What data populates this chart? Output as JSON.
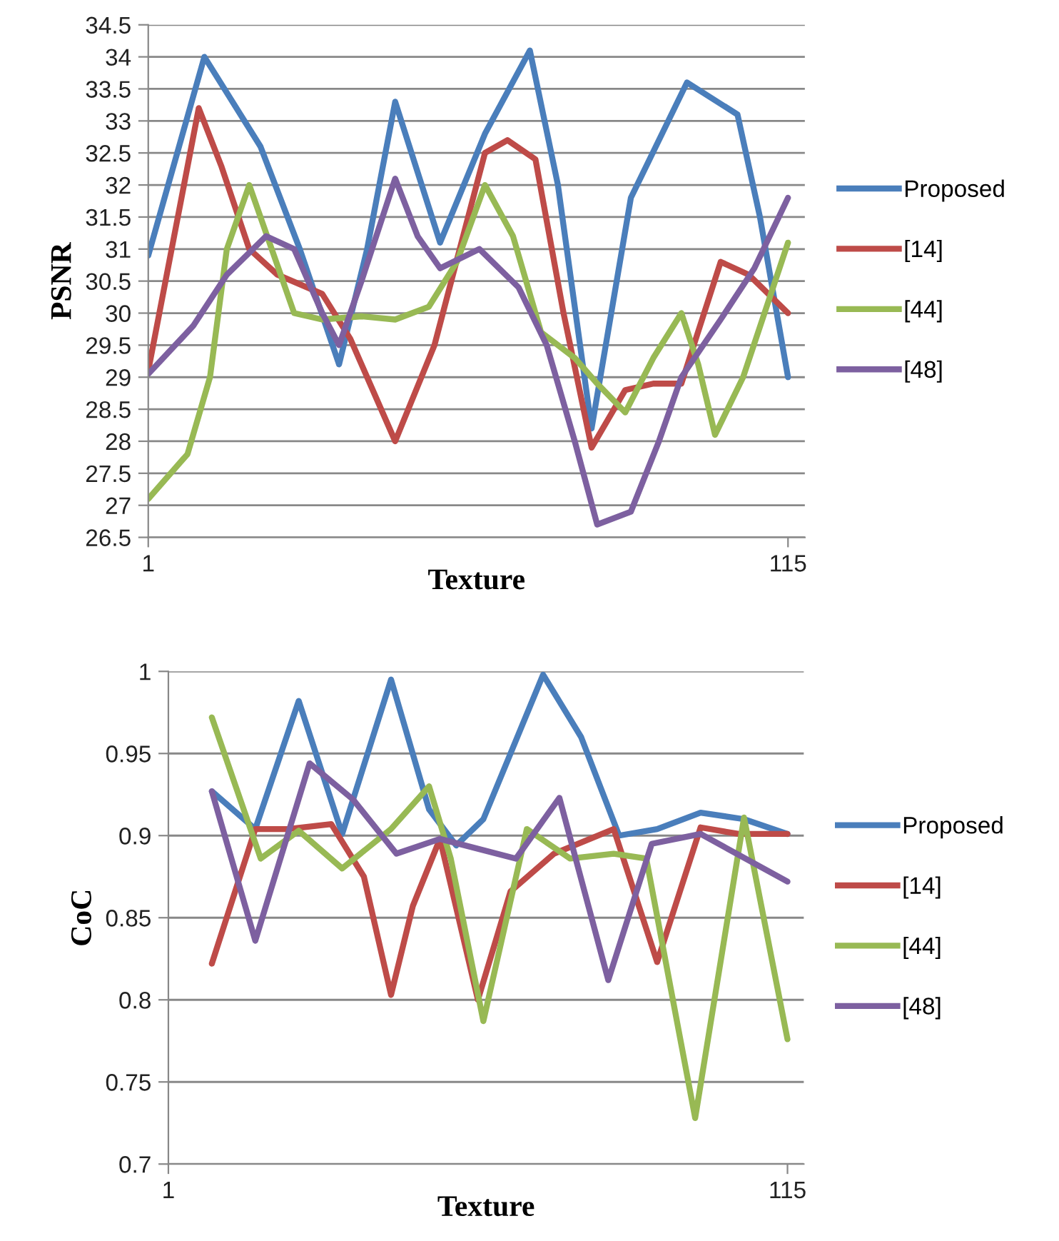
{
  "chart_data": [
    {
      "type": "line",
      "xlabel": "Texture",
      "ylabel": "PSNR",
      "xlim": [
        1,
        118
      ],
      "xticks": [
        1,
        115
      ],
      "ylim": [
        26.5,
        34.5
      ],
      "yticks": [
        26.5,
        27,
        27.5,
        28,
        28.5,
        29,
        29.5,
        30,
        30.5,
        31,
        31.5,
        32,
        32.5,
        33,
        33.5,
        34,
        34.5
      ],
      "grid": "y",
      "legend": "right",
      "marker": "none",
      "line_style": "solid",
      "series": [
        {
          "name": "Proposed",
          "color": "#4a7ebb",
          "x": [
            1,
            11,
            21,
            28,
            35,
            40,
            45,
            53,
            61,
            69,
            74,
            80,
            87,
            97,
            106,
            110,
            115
          ],
          "values": [
            30.9,
            34.0,
            32.6,
            31.0,
            29.2,
            31.0,
            33.3,
            31.1,
            32.8,
            34.1,
            32.0,
            28.2,
            31.8,
            33.6,
            33.1,
            31.5,
            29.0
          ]
        },
        {
          "name": "[14]",
          "color": "#be4b48",
          "x": [
            1,
            10,
            14,
            19,
            24,
            32,
            37,
            45,
            52,
            61,
            65,
            70,
            75,
            80,
            86,
            91,
            96,
            103,
            108,
            115
          ],
          "values": [
            29.1,
            33.2,
            32.3,
            31.0,
            30.6,
            30.3,
            29.6,
            28.0,
            29.5,
            32.5,
            32.7,
            32.4,
            30.0,
            27.9,
            28.8,
            28.9,
            28.9,
            30.8,
            30.6,
            30.0
          ]
        },
        {
          "name": "[44]",
          "color": "#98b954",
          "x": [
            1,
            8,
            12,
            15,
            19,
            23,
            27,
            32,
            39,
            45,
            51,
            56,
            61,
            66,
            71,
            77,
            81,
            86,
            91,
            96,
            99,
            102,
            107,
            115
          ],
          "values": [
            27.1,
            27.8,
            29.0,
            31.0,
            32.0,
            31.0,
            30.0,
            29.9,
            29.95,
            29.9,
            30.1,
            30.8,
            32.0,
            31.2,
            29.7,
            29.3,
            28.9,
            28.45,
            29.3,
            30.0,
            29.2,
            28.1,
            29.0,
            31.1
          ]
        },
        {
          "name": "[48]",
          "color": "#7d60a0",
          "x": [
            1,
            9,
            15,
            22,
            27,
            32,
            35,
            39,
            45,
            49,
            53,
            60,
            67,
            72,
            77,
            81,
            87,
            92,
            96,
            103,
            109,
            115
          ],
          "values": [
            29.05,
            29.8,
            30.6,
            31.2,
            31.0,
            30.0,
            29.5,
            30.5,
            32.1,
            31.2,
            30.7,
            31.0,
            30.4,
            29.5,
            28.0,
            26.7,
            26.9,
            28.0,
            29.0,
            29.9,
            30.7,
            31.8
          ]
        }
      ]
    },
    {
      "type": "line",
      "xlabel": "Texture",
      "ylabel": "CoC",
      "xlim": [
        1,
        118
      ],
      "xticks": [
        1,
        115
      ],
      "ylim": [
        0.7,
        1.0
      ],
      "yticks": [
        0.7,
        0.75,
        0.8,
        0.85,
        0.9,
        0.95,
        1
      ],
      "grid": "y",
      "legend": "right",
      "marker": "none",
      "line_style": "solid",
      "series": [
        {
          "name": "Proposed",
          "color": "#4a7ebb",
          "x": [
            9,
            17,
            25,
            33,
            42,
            49,
            54,
            59,
            70,
            77,
            84,
            91,
            99,
            107,
            115
          ],
          "values": [
            0.927,
            0.904,
            0.982,
            0.901,
            0.995,
            0.916,
            0.894,
            0.91,
            0.998,
            0.96,
            0.9,
            0.904,
            0.914,
            0.91,
            0.901
          ]
        },
        {
          "name": "[14]",
          "color": "#be4b48",
          "x": [
            9,
            17,
            23,
            31,
            37,
            42,
            46,
            51,
            58,
            64,
            72,
            83,
            91,
            99,
            106,
            115
          ],
          "values": [
            0.822,
            0.904,
            0.904,
            0.907,
            0.875,
            0.803,
            0.857,
            0.898,
            0.8,
            0.866,
            0.889,
            0.904,
            0.823,
            0.905,
            0.901,
            0.901
          ]
        },
        {
          "name": "[44]",
          "color": "#98b954",
          "x": [
            9,
            18,
            25,
            33,
            42,
            49,
            53,
            59,
            67,
            75,
            83,
            89,
            98,
            107,
            115
          ],
          "values": [
            0.972,
            0.886,
            0.903,
            0.88,
            0.904,
            0.93,
            0.886,
            0.787,
            0.904,
            0.886,
            0.889,
            0.886,
            0.728,
            0.911,
            0.776
          ]
        },
        {
          "name": "[48]",
          "color": "#7d60a0",
          "x": [
            9,
            17,
            27,
            35,
            43,
            51,
            65,
            73,
            82,
            90,
            99,
            115
          ],
          "values": [
            0.927,
            0.836,
            0.944,
            0.922,
            0.889,
            0.898,
            0.886,
            0.923,
            0.812,
            0.895,
            0.901,
            0.872
          ]
        }
      ]
    }
  ]
}
